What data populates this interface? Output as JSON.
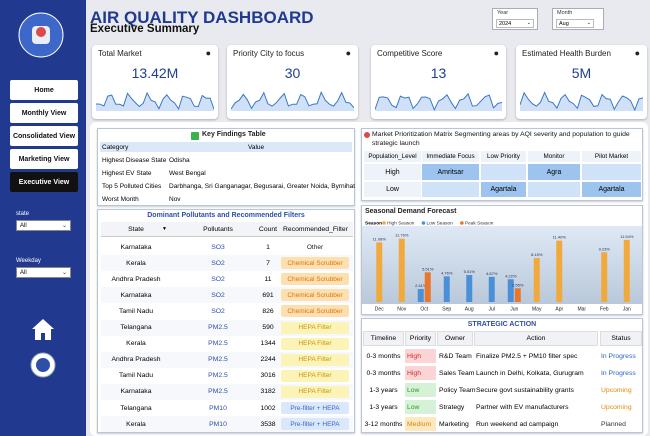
{
  "header": {
    "title": "AIR QUALITY DASHBOARD",
    "subtitle": "Executive Summary"
  },
  "filters": [
    {
      "label": "Year",
      "value": "2024"
    },
    {
      "label": "Month",
      "value": "Aug"
    }
  ],
  "nav": [
    "Home",
    "Monthly View",
    "Consolidated View",
    "Marketing View",
    "Executive View"
  ],
  "slicers": [
    {
      "label": "state",
      "value": "All"
    },
    {
      "label": "Weekday",
      "value": "All"
    }
  ],
  "kpis": [
    {
      "title": "Total Market",
      "value": "13.42M"
    },
    {
      "title": "Priority City to focus",
      "value": "30"
    },
    {
      "title": "Competitive Score",
      "value": "13"
    },
    {
      "title": "Estimated Health Burden",
      "value": "5M"
    }
  ],
  "key_findings": {
    "title": "Key Findings Table",
    "columns": [
      "Category",
      "Value"
    ],
    "rows": [
      [
        "Highest Disease State",
        "Odisha"
      ],
      [
        "Highest EV State",
        "West Bengal"
      ],
      [
        "Top 5 Polluted Cities",
        "Darbhanga, Sri Ganganagar, Begusarai, Greater Noida, Byrnihat"
      ],
      [
        "Worst Month",
        "Nov"
      ]
    ]
  },
  "matrix": {
    "title": "Market Prioritization Matrix Segmenting areas by AQI severity and population to guide strategic launch",
    "columns": [
      "Population_Level",
      "Immediate Focus",
      "Low Priority",
      "Monitor",
      "Pilot Market"
    ],
    "rows": [
      [
        "High",
        "Amritsar",
        null,
        "Agra",
        null
      ],
      [
        "Low",
        null,
        "Agartala",
        null,
        "Agartala"
      ]
    ]
  },
  "pollutants": {
    "title": "Dominant Pollutants and Recommended Filters",
    "columns": [
      "State",
      "Pollutants",
      "Count",
      "Recommended_Filter"
    ],
    "rows": [
      [
        "Karnataka",
        "SO3",
        1,
        "Other"
      ],
      [
        "Kerala",
        "SO2",
        7,
        "Chemical Scrubber"
      ],
      [
        "Andhra Pradesh",
        "SO2",
        11,
        "Chemical Scrubber"
      ],
      [
        "Karnataka",
        "SO2",
        691,
        "Chemical Scrubber"
      ],
      [
        "Tamil Nadu",
        "SO2",
        826,
        "Chemical Scrubber"
      ],
      [
        "Telangana",
        "PM2.5",
        590,
        "HEPA Filter"
      ],
      [
        "Kerala",
        "PM2.5",
        1344,
        "HEPA Filter"
      ],
      [
        "Andhra Pradesh",
        "PM2.5",
        2244,
        "HEPA Filter"
      ],
      [
        "Tamil Nadu",
        "PM2.5",
        3016,
        "HEPA Filter"
      ],
      [
        "Karnataka",
        "PM2.5",
        3182,
        "HEPA Filter"
      ],
      [
        "Telangana",
        "PM10",
        1002,
        "Pre-filter + HEPA"
      ],
      [
        "Kerala",
        "PM10",
        3538,
        "Pre-filter + HEPA"
      ]
    ]
  },
  "seasonal_forecast": {
    "type": "bar",
    "title": "Seasonal Demand Forecast",
    "legend_title": "Season",
    "categories": [
      "Dec",
      "Nov",
      "Oct",
      "Sep",
      "Aug",
      "Jul",
      "Jun",
      "May",
      "Apr",
      "Mar",
      "Feb",
      "Jan"
    ],
    "ylim": [
      0,
      13
    ],
    "series": [
      {
        "name": "High Season",
        "color": "#f2a93b",
        "values": [
          11.08,
          11.76,
          null,
          null,
          null,
          null,
          null,
          8.15,
          11.4,
          null,
          9.23,
          11.54
        ],
        "value_labels": [
          "11.08%",
          "11.76%",
          null,
          null,
          null,
          null,
          null,
          "8.15%",
          "11.40%",
          null,
          "9.23%",
          "11.54%"
        ]
      },
      {
        "name": "Low Season",
        "color": "#4a90d9",
        "values": [
          null,
          null,
          2.41,
          4.76,
          5.01,
          4.67,
          4.22,
          null,
          null,
          null,
          null,
          null
        ],
        "value_labels": [
          null,
          null,
          "2.41%",
          "4.76%",
          "5.01%",
          "4.67%",
          "4.22%",
          null,
          null,
          null,
          null,
          null
        ]
      },
      {
        "name": "Peak Season",
        "color": "#e8762d",
        "values": [
          null,
          null,
          5.51,
          null,
          null,
          null,
          2.55,
          null,
          null,
          null,
          null,
          null
        ],
        "value_labels": [
          null,
          null,
          "5.51%",
          null,
          null,
          null,
          "2.55%",
          null,
          null,
          null,
          null,
          null
        ]
      }
    ]
  },
  "strategic_action": {
    "title": "STRATEGIC ACTION",
    "columns": [
      "Timeline",
      "Priority",
      "Owner",
      "Action",
      "Status"
    ],
    "rows": [
      [
        "0-3 months",
        "High",
        "R&D Team",
        "Finalize PM2.5 + PM10 filter spec",
        "In Progress"
      ],
      [
        "0-3 months",
        "High",
        "Sales Team",
        "Launch in Delhi, Kolkata, Gurugram",
        "In Progress"
      ],
      [
        "1-3 years",
        "Low",
        "Policy Team",
        "Secure govt sustainability grants",
        "Upcoming"
      ],
      [
        "1-3 years",
        "Low",
        "Strategy",
        "Partner with EV manufacturers",
        "Upcoming"
      ],
      [
        "3-12 months",
        "Medium",
        "Marketing",
        "Run weekend ad campaign",
        "Planned"
      ]
    ]
  }
}
